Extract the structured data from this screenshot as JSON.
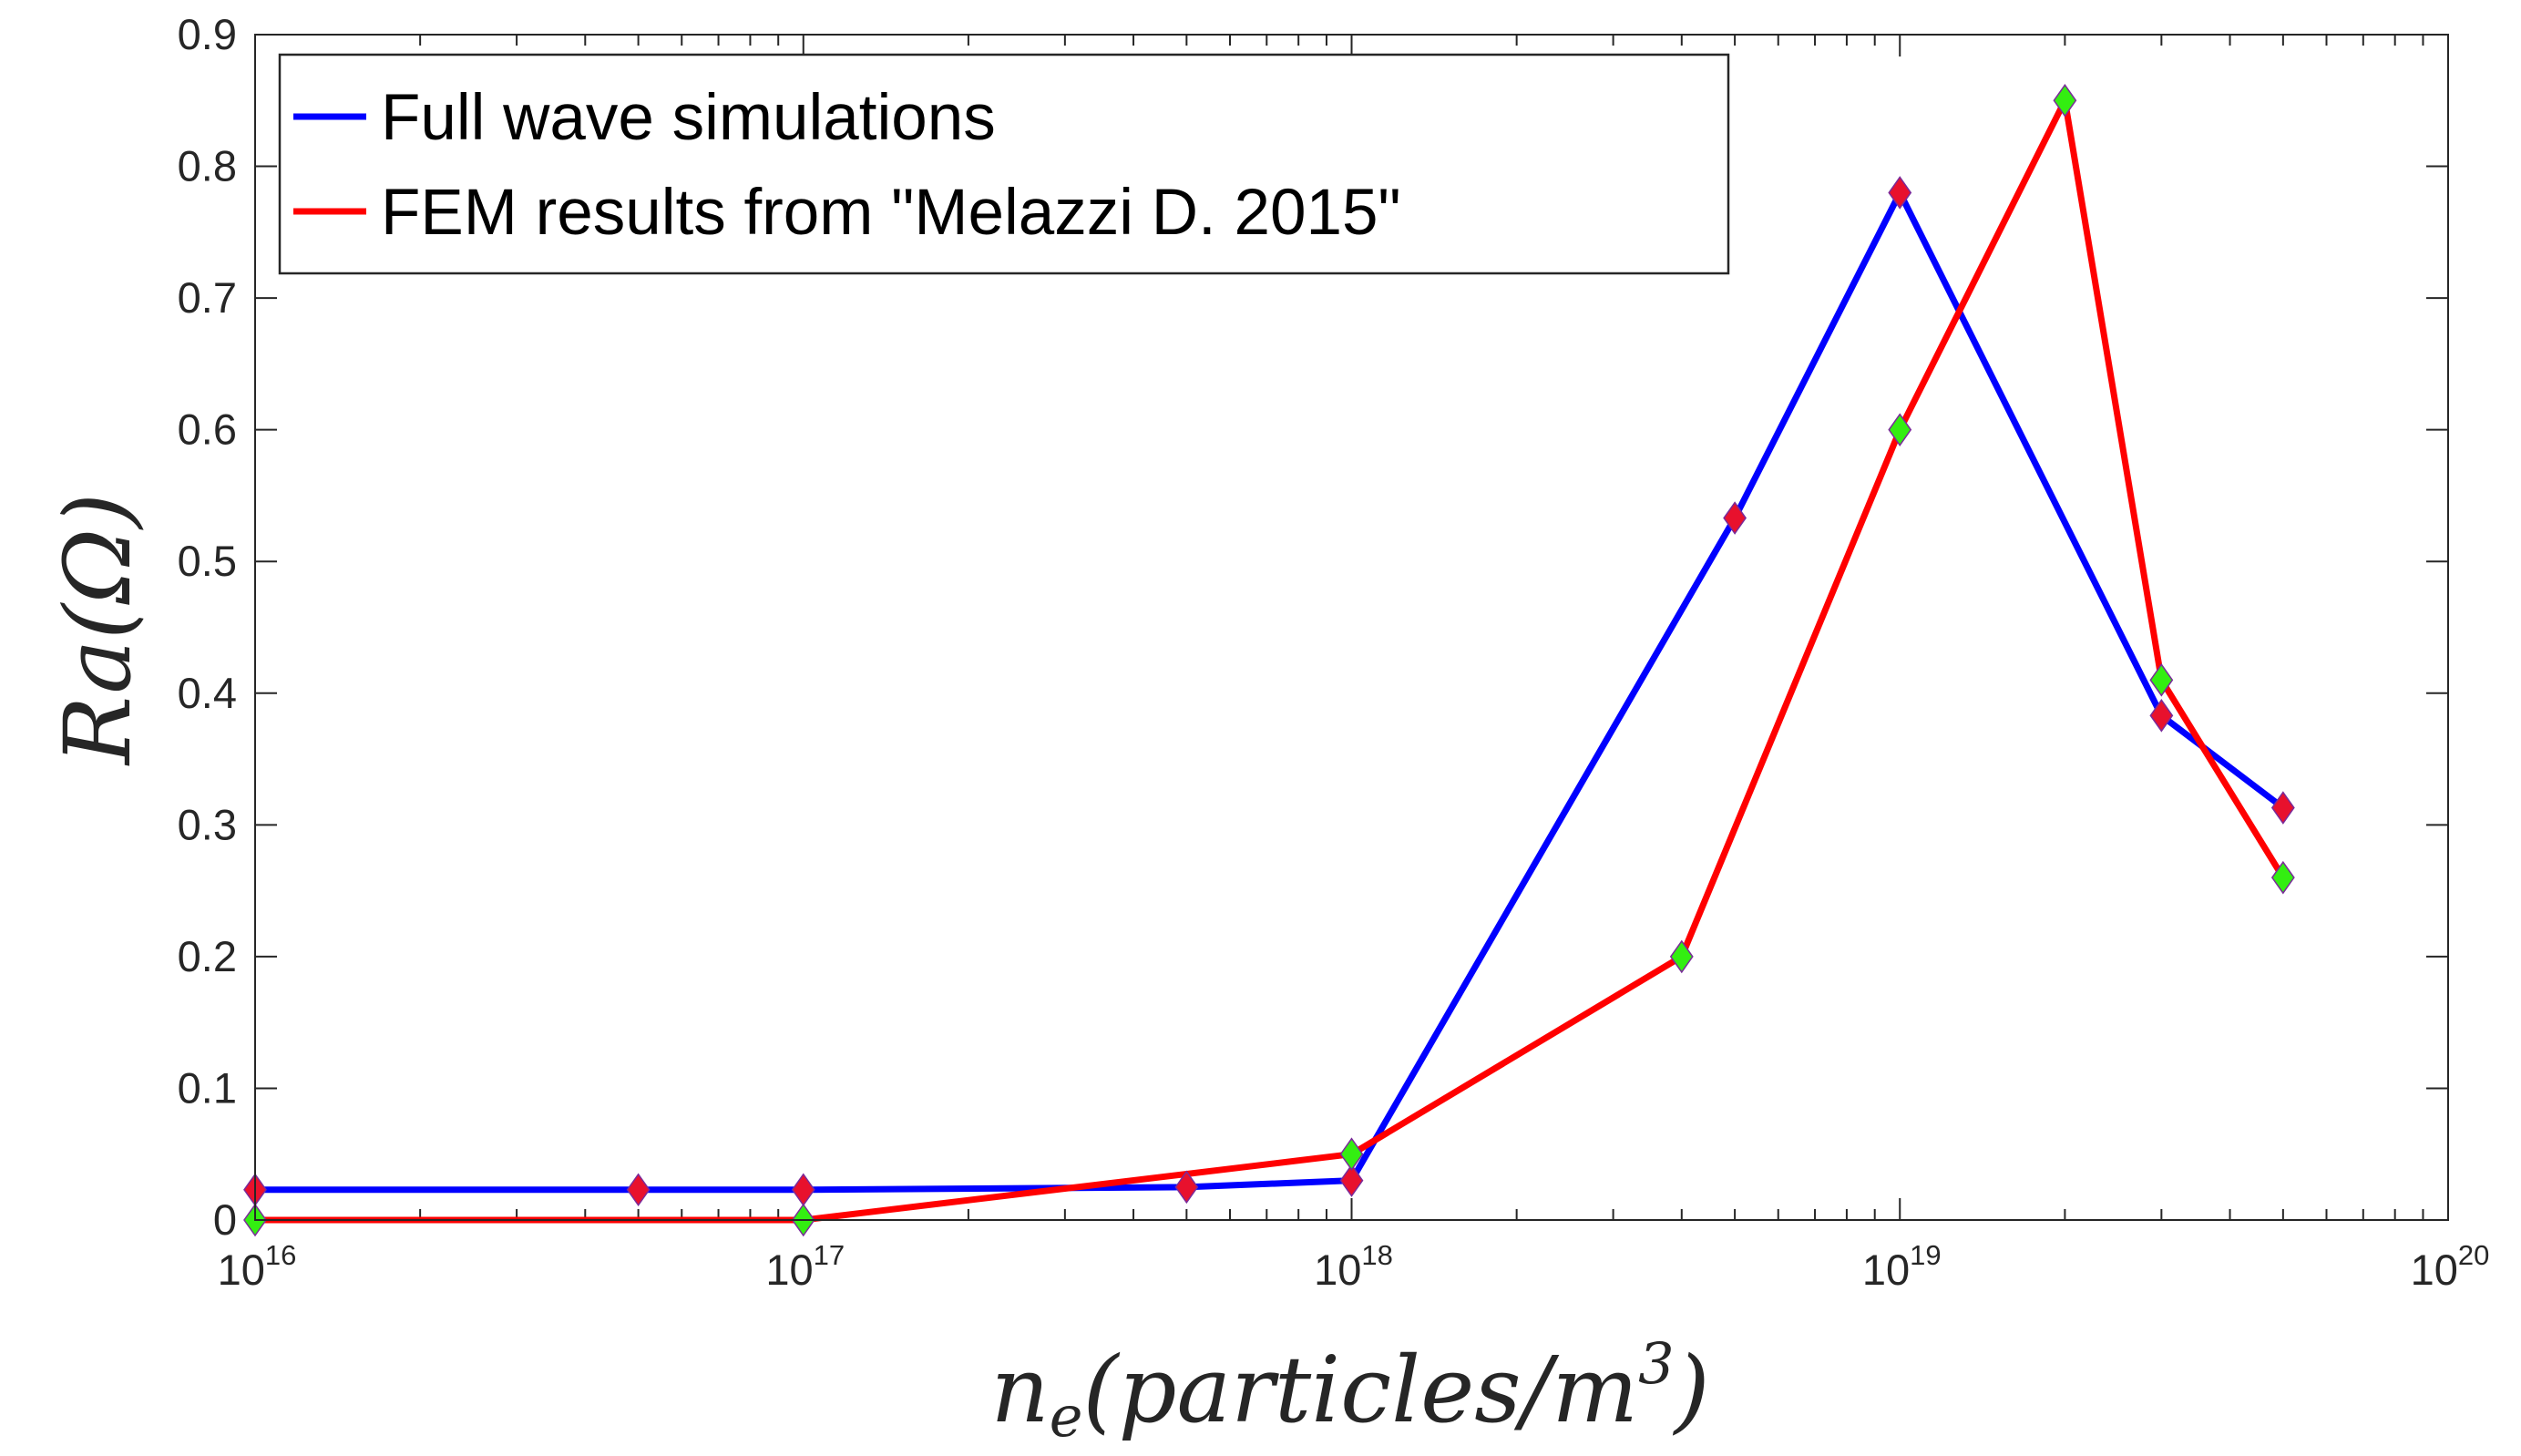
{
  "chart_data": {
    "type": "line",
    "xscale": "log",
    "xlim": [
      1e+16,
      1e+20
    ],
    "ylim": [
      0,
      0.9
    ],
    "x_ticks": [
      {
        "value": 1e+16,
        "base": "10",
        "exp": "16"
      },
      {
        "value": 1e+17,
        "base": "10",
        "exp": "17"
      },
      {
        "value": 1e+18,
        "base": "10",
        "exp": "18"
      },
      {
        "value": 1e+19,
        "base": "10",
        "exp": "19"
      },
      {
        "value": 1e+20,
        "base": "10",
        "exp": "20"
      }
    ],
    "y_ticks": [
      {
        "value": 0,
        "label": "0"
      },
      {
        "value": 0.1,
        "label": "0.1"
      },
      {
        "value": 0.2,
        "label": "0.2"
      },
      {
        "value": 0.3,
        "label": "0.3"
      },
      {
        "value": 0.4,
        "label": "0.4"
      },
      {
        "value": 0.5,
        "label": "0.5"
      },
      {
        "value": 0.6,
        "label": "0.6"
      },
      {
        "value": 0.7,
        "label": "0.7"
      },
      {
        "value": 0.8,
        "label": "0.8"
      },
      {
        "value": 0.9,
        "label": "0.9"
      }
    ],
    "xlabel": {
      "base": "n",
      "sub": "e",
      "mid": "(particles/m",
      "sup": "3",
      "end": ")"
    },
    "ylabel": "Ra(Ω)",
    "grid": false,
    "legend_position": "top-left",
    "series": [
      {
        "name": "Full wave simulations",
        "color": "#0000ff",
        "marker_color": "#e8112d",
        "x": [
          1e+16,
          5e+16,
          1e+17,
          5e+17,
          1e+18,
          5e+18,
          1e+19,
          3e+19,
          5e+19
        ],
        "y": [
          0.023,
          0.023,
          0.023,
          0.025,
          0.03,
          0.533,
          0.78,
          0.383,
          0.313
        ]
      },
      {
        "name": "FEM results from \"Melazzi D. 2015\"",
        "color": "#ff0000",
        "marker_color": "#33ee11",
        "x": [
          1e+16,
          1e+17,
          1e+18,
          4e+18,
          1e+19,
          2e+19,
          3e+19,
          5e+19
        ],
        "y": [
          0,
          0,
          0.05,
          0.2,
          0.6,
          0.85,
          0.41,
          0.26
        ]
      }
    ]
  }
}
